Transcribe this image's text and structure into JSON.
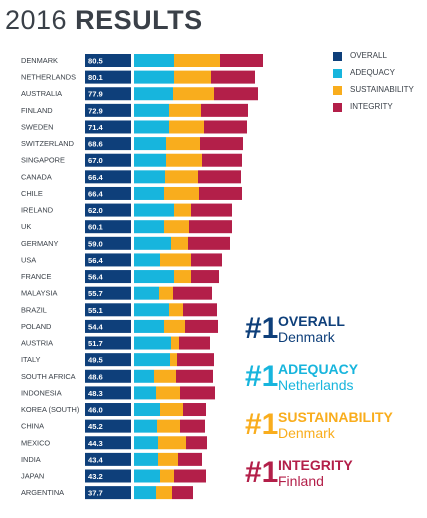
{
  "header": {
    "title_year": "2016",
    "title_word": "RESULTS"
  },
  "legend": {
    "items": [
      {
        "label": "OVERALL",
        "color": "#0e3f7a"
      },
      {
        "label": "ADEQUACY",
        "color": "#17b5dd"
      },
      {
        "label": "SUSTAINABILITY",
        "color": "#f9ad1d"
      },
      {
        "label": "INTEGRITY",
        "color": "#b31f49"
      }
    ]
  },
  "winners": [
    {
      "rank": "#1",
      "category": "OVERALL",
      "country": "Denmark",
      "color": "#0e3f7a"
    },
    {
      "rank": "#1",
      "category": "ADEQUACY",
      "country": "Netherlands",
      "color": "#17b5dd"
    },
    {
      "rank": "#1",
      "category": "SUSTAINABILITY",
      "country": "Denmark",
      "color": "#f9ad1d"
    },
    {
      "rank": "#1",
      "category": "INTEGRITY",
      "country": "Finland",
      "color": "#b31f49"
    }
  ],
  "chart_data": {
    "type": "bar",
    "stacked": true,
    "orientation": "horizontal",
    "categories": [
      "DENMARK",
      "NETHERLANDS",
      "AUSTRALIA",
      "FINLAND",
      "SWEDEN",
      "SWITZERLAND",
      "SINGAPORE",
      "CANADA",
      "CHILE",
      "IRELAND",
      "UK",
      "GERMANY",
      "USA",
      "FRANCE",
      "MALAYSIA",
      "BRAZIL",
      "POLAND",
      "AUSTRIA",
      "ITALY",
      "SOUTH AFRICA",
      "INDONESIA",
      "KOREA (SOUTH)",
      "CHINA",
      "MEXICO",
      "INDIA",
      "JAPAN",
      "ARGENTINA"
    ],
    "overall": {
      "name": "OVERALL",
      "color": "#0e3f7a",
      "values": [
        "80.5",
        "80.1",
        "77.9",
        "72.9",
        "71.4",
        "68.6",
        "67.0",
        "66.4",
        "66.4",
        "62.0",
        "60.1",
        "59.0",
        "56.4",
        "56.4",
        "55.7",
        "55.1",
        "54.4",
        "51.7",
        "49.5",
        "48.6",
        "48.3",
        "46.0",
        "45.2",
        "44.3",
        "43.4",
        "43.2",
        "37.7"
      ]
    },
    "series": [
      {
        "name": "ADEQUACY",
        "color": "#17b5dd",
        "values": [
          40,
          40,
          39,
          35,
          35,
          32,
          32,
          31,
          30,
          40,
          30,
          37,
          26,
          40,
          25,
          35,
          30,
          37,
          36,
          20,
          22,
          26,
          23,
          24,
          24,
          26,
          22
        ]
      },
      {
        "name": "SUSTAINABILITY",
        "color": "#f9ad1d",
        "values": [
          46,
          37,
          41,
          32,
          35,
          34,
          36,
          33,
          35,
          17,
          25,
          17,
          31,
          17,
          14,
          14,
          21,
          8,
          7,
          22,
          24,
          23,
          23,
          28,
          20,
          14,
          16
        ]
      },
      {
        "name": "INTEGRITY",
        "color": "#b31f49",
        "values": [
          43,
          44,
          44,
          47,
          43,
          43,
          40,
          43,
          43,
          41,
          43,
          42,
          31,
          28,
          39,
          34,
          33,
          31,
          37,
          37,
          35,
          23,
          25,
          21,
          24,
          32,
          21
        ]
      }
    ]
  }
}
